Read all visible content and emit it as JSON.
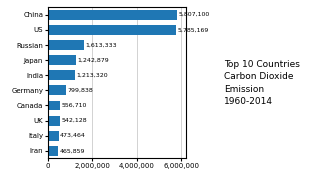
{
  "chart_data": {
    "type": "bar",
    "orientation": "horizontal",
    "title": "Top 10 Countries\nCarbon Dioxide\nEmission\n1960-2014",
    "categories": [
      "China",
      "US",
      "Russian",
      "Japan",
      "India",
      "Germany",
      "Canada",
      "UK",
      "Italy",
      "Iran"
    ],
    "values": [
      5807100,
      5785169,
      1613333,
      1242879,
      1213320,
      799838,
      556710,
      542128,
      473464,
      465859
    ],
    "value_labels": [
      "5,807,100",
      "5,785,169",
      "1,613,333",
      "1,242,879",
      "1,213,320",
      "799,838",
      "556,710",
      "542,128",
      "473,464",
      "465,859"
    ],
    "data_labels": true,
    "xlim": [
      0,
      6200000
    ],
    "xticks": [
      0,
      {
        "value": 2000000,
        "label": "2,000,000"
      },
      {
        "value": 4000000,
        "label": "4,000,000"
      },
      {
        "value": 6000000,
        "label": "6,000,000"
      }
    ],
    "grid": true
  }
}
